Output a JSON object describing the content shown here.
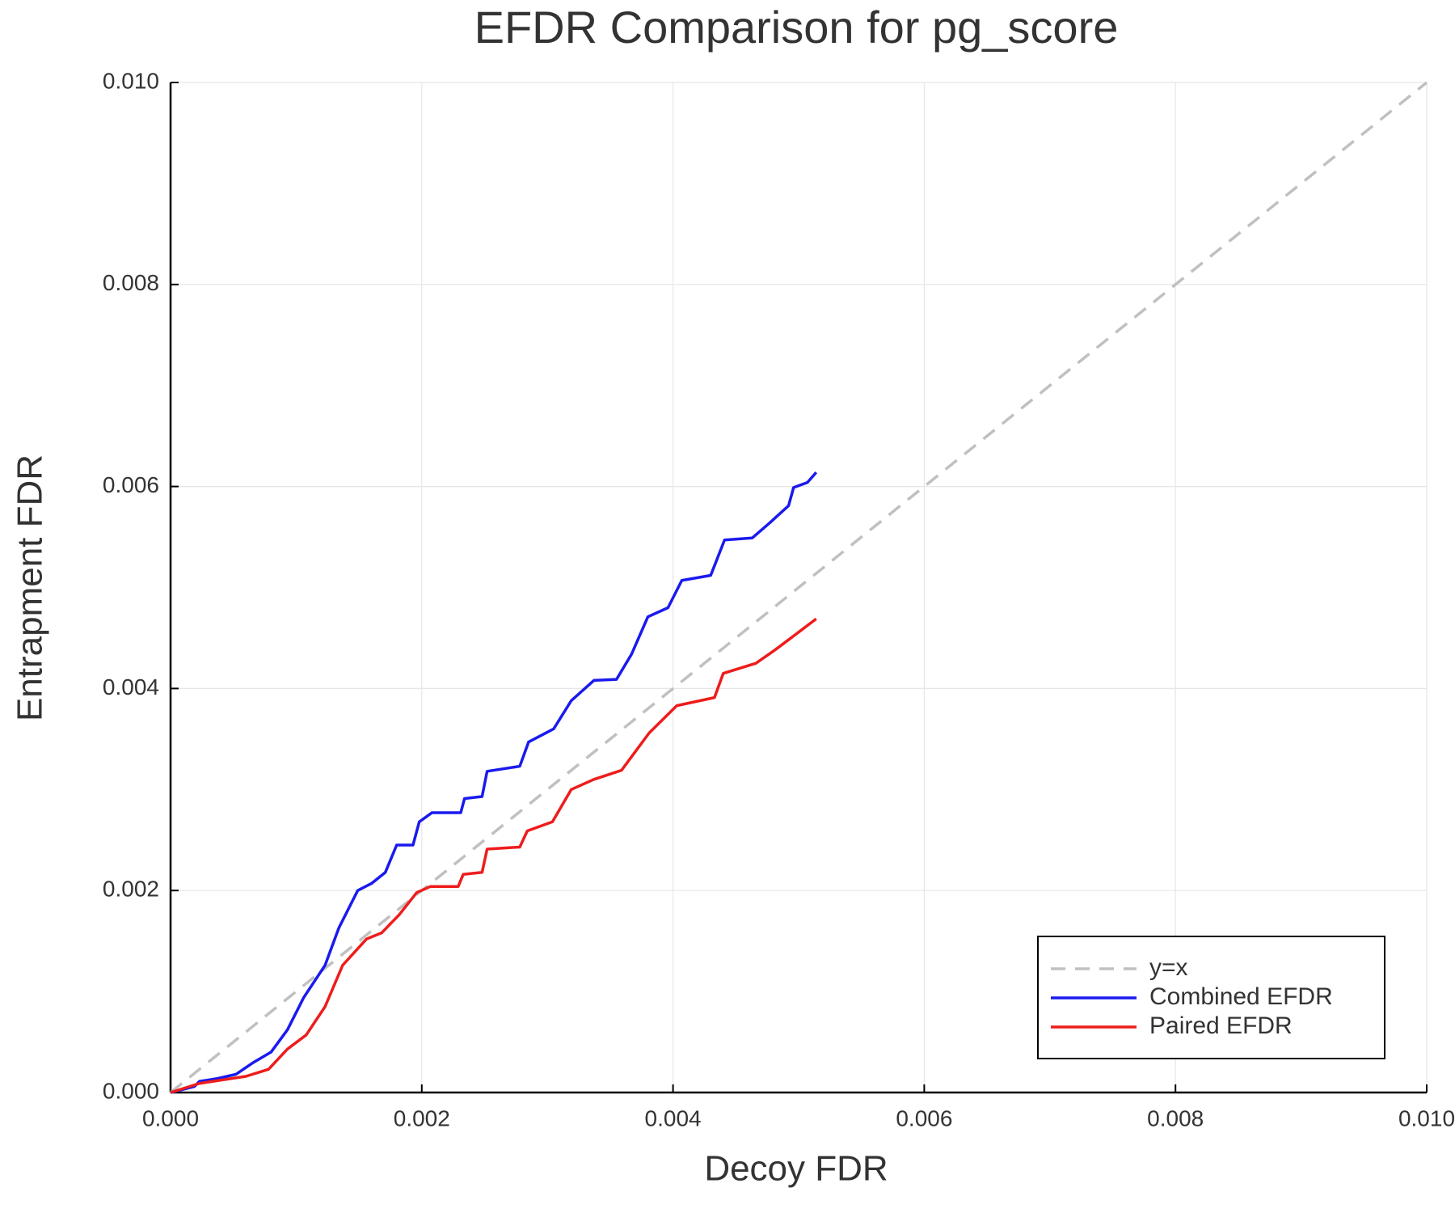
{
  "chart_data": {
    "type": "line",
    "title": "EFDR Comparison for pg_score",
    "xlabel": "Decoy FDR",
    "ylabel": "Entrapment FDR",
    "xlim": [
      0,
      0.01
    ],
    "ylim": [
      0,
      0.01
    ],
    "xticks": [
      {
        "value": 0,
        "label": "0.000"
      },
      0.002,
      0.004,
      0.006,
      0.008,
      {
        "value": 0.01,
        "label": "0.010"
      }
    ],
    "yticks": [
      {
        "value": 0,
        "label": "0.000"
      },
      0.002,
      0.004,
      0.006,
      0.008,
      {
        "value": 0.01,
        "label": "0.010"
      }
    ],
    "grid": true,
    "legend": "bottom right",
    "series": [
      {
        "name": "y=x",
        "color": "#c0c0c0",
        "linestyle": "dashed",
        "x": [
          0,
          0.01
        ],
        "values": [
          0,
          0.01
        ]
      },
      {
        "name": "Combined EFDR",
        "color": "#1a1aee",
        "linestyle": "solid",
        "x": [
          0,
          0.00019,
          0.00023,
          0.00038,
          0.00052,
          0.00065,
          0.0008,
          0.00093,
          0.00106,
          0.00123,
          0.00134,
          0.00149,
          0.0016,
          0.00171,
          0.0018,
          0.00193,
          0.00198,
          0.00208,
          0.00231,
          0.00234,
          0.00248,
          0.00252,
          0.00278,
          0.00285,
          0.00305,
          0.00319,
          0.00337,
          0.00355,
          0.00367,
          0.0038,
          0.00396,
          0.00407,
          0.0043,
          0.00441,
          0.00463,
          0.00477,
          0.00492,
          0.00496,
          0.00507,
          0.00514
        ],
        "values": [
          0,
          6e-05,
          0.00011,
          0.00014,
          0.00018,
          0.00029,
          0.0004,
          0.00062,
          0.00094,
          0.00126,
          0.00163,
          0.002,
          0.00207,
          0.00218,
          0.00245,
          0.00245,
          0.00268,
          0.00277,
          0.00277,
          0.00291,
          0.00293,
          0.00318,
          0.00323,
          0.00347,
          0.0036,
          0.00388,
          0.00408,
          0.00409,
          0.00434,
          0.00471,
          0.0048,
          0.00507,
          0.00512,
          0.00547,
          0.00549,
          0.00564,
          0.00581,
          0.00599,
          0.00604,
          0.00614
        ]
      },
      {
        "name": "Paired EFDR",
        "color": "#ee1c1c",
        "linestyle": "solid",
        "x": [
          0,
          0.00023,
          0.0006,
          0.00078,
          0.00093,
          0.00108,
          0.00123,
          0.00137,
          0.00156,
          0.00168,
          0.00182,
          0.00196,
          0.00207,
          0.00229,
          0.00233,
          0.00248,
          0.00252,
          0.00278,
          0.00284,
          0.00304,
          0.00319,
          0.00337,
          0.00359,
          0.00381,
          0.00403,
          0.00433,
          0.0044,
          0.00466,
          0.00481,
          0.00496,
          0.00514
        ],
        "values": [
          0,
          9e-05,
          0.00016,
          0.00023,
          0.00043,
          0.00057,
          0.00085,
          0.00126,
          0.00152,
          0.00158,
          0.00176,
          0.00198,
          0.00204,
          0.00204,
          0.00216,
          0.00218,
          0.00241,
          0.00243,
          0.00259,
          0.00268,
          0.003,
          0.0031,
          0.00319,
          0.00356,
          0.00383,
          0.00391,
          0.00415,
          0.00425,
          0.00438,
          0.00452,
          0.00469
        ]
      }
    ]
  }
}
